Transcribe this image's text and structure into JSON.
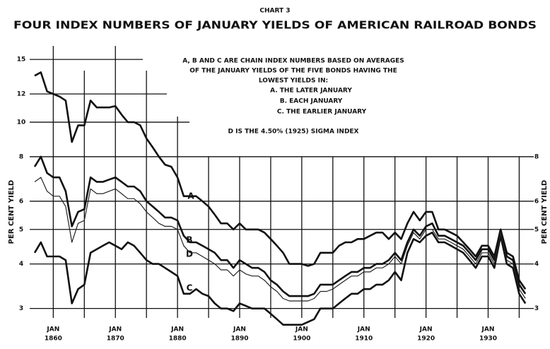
{
  "chart_data": {
    "type": "line",
    "subtitle": "CHART 3",
    "title": "FOUR INDEX NUMBERS OF JANUARY YIELDS OF AMERICAN RAILROAD BONDS",
    "annotations": [
      "A, B AND C ARE CHAIN INDEX NUMBERS BASED ON AVERAGES",
      "OF THE JANUARY YIELDS OF THE FIVE BONDS HAVING THE",
      "LOWEST YIELDS IN:",
      "A. THE LATER JANUARY",
      "B. EACH JANUARY",
      "C. THE EARLIER JANUARY",
      "D IS THE 4.50% (1925) SIGMA INDEX"
    ],
    "y_label": "PER CENT YIELD",
    "x_tick_prefix": "JAN",
    "log_scale_y": true,
    "x": [
      1857,
      1858,
      1859,
      1860,
      1861,
      1862,
      1863,
      1864,
      1865,
      1866,
      1867,
      1868,
      1869,
      1870,
      1871,
      1872,
      1873,
      1874,
      1875,
      1876,
      1877,
      1878,
      1879,
      1880,
      1881,
      1882,
      1883,
      1884,
      1885,
      1886,
      1887,
      1888,
      1889,
      1890,
      1891,
      1892,
      1893,
      1894,
      1895,
      1896,
      1897,
      1898,
      1899,
      1900,
      1901,
      1902,
      1903,
      1904,
      1905,
      1906,
      1907,
      1908,
      1909,
      1910,
      1911,
      1912,
      1913,
      1914,
      1915,
      1916,
      1917,
      1918,
      1919,
      1920,
      1921,
      1922,
      1923,
      1924,
      1925,
      1926,
      1927,
      1928,
      1929,
      1930,
      1931,
      1932,
      1933,
      1934,
      1935,
      1936
    ],
    "series": [
      {
        "name": "A",
        "color": "#111111",
        "values": [
          13.5,
          13.8,
          12.2,
          12,
          11.8,
          11.5,
          8.8,
          9.8,
          9.8,
          11.5,
          11,
          11,
          11,
          11.1,
          10.5,
          10,
          10,
          9.8,
          9,
          8.5,
          8,
          7.6,
          7.5,
          7,
          6.2,
          6.2,
          6.2,
          6,
          5.8,
          5.5,
          5.2,
          5.2,
          5,
          5.2,
          5,
          5,
          5,
          4.9,
          4.7,
          4.5,
          4.3,
          4,
          4,
          4,
          3.95,
          4,
          4.3,
          4.3,
          4.3,
          4.5,
          4.6,
          4.6,
          4.7,
          4.7,
          4.8,
          4.9,
          4.9,
          4.7,
          4.9,
          4.7,
          5.2,
          5.6,
          5.3,
          5.6,
          5.6,
          5.0,
          5.0,
          4.9,
          4.8,
          4.6,
          4.4,
          4.2,
          4.5,
          4.5,
          4.2,
          5.0,
          4.3,
          4.2,
          3.6,
          3.4
        ]
      },
      {
        "name": "B",
        "color": "#111111",
        "values": [
          7.5,
          8,
          7.2,
          7,
          7,
          6.4,
          5.1,
          5.6,
          5.7,
          7,
          6.8,
          6.8,
          6.9,
          7,
          6.8,
          6.6,
          6.6,
          6.4,
          6,
          5.8,
          5.6,
          5.4,
          5.4,
          5.3,
          4.8,
          4.6,
          4.6,
          4.5,
          4.4,
          4.3,
          4.1,
          4.1,
          3.9,
          4.1,
          4,
          3.9,
          3.9,
          3.8,
          3.6,
          3.5,
          3.35,
          3.25,
          3.25,
          3.25,
          3.25,
          3.3,
          3.5,
          3.5,
          3.5,
          3.6,
          3.7,
          3.8,
          3.8,
          3.9,
          3.9,
          4,
          4,
          4.1,
          4.3,
          4.1,
          4.6,
          5.0,
          4.8,
          5.1,
          5.2,
          4.8,
          4.8,
          4.7,
          4.6,
          4.5,
          4.3,
          4.1,
          4.4,
          4.4,
          4.1,
          5.0,
          4.2,
          4.1,
          3.5,
          3.3
        ]
      },
      {
        "name": "C",
        "color": "#111111",
        "values": [
          4.3,
          4.6,
          4.2,
          4.2,
          4.2,
          4.1,
          3.1,
          3.4,
          3.5,
          4.3,
          4.4,
          4.5,
          4.6,
          4.5,
          4.4,
          4.6,
          4.5,
          4.3,
          4.1,
          4,
          4,
          3.9,
          3.8,
          3.7,
          3.3,
          3.3,
          3.4,
          3.3,
          3.25,
          3.1,
          3.0,
          3.0,
          2.95,
          3.1,
          3.05,
          3.0,
          3.0,
          3.0,
          2.9,
          2.8,
          2.7,
          2.7,
          2.7,
          2.7,
          2.75,
          2.8,
          3.0,
          3.0,
          3.0,
          3.1,
          3.2,
          3.3,
          3.3,
          3.4,
          3.4,
          3.5,
          3.5,
          3.6,
          3.8,
          3.6,
          4.3,
          4.7,
          4.6,
          4.8,
          4.9,
          4.6,
          4.6,
          4.5,
          4.4,
          4.3,
          4.1,
          3.9,
          4.2,
          4.2,
          3.9,
          4.8,
          4.0,
          3.9,
          3.3,
          3.1
        ]
      },
      {
        "name": "D",
        "color": "#222222",
        "values": [
          6.8,
          7,
          6.4,
          6.2,
          6.2,
          5.8,
          4.6,
          5.2,
          5.3,
          6.5,
          6.3,
          6.3,
          6.4,
          6.5,
          6.3,
          6.1,
          6.1,
          5.9,
          5.6,
          5.4,
          5.2,
          5.1,
          5.1,
          5,
          4.5,
          4.3,
          4.3,
          4.2,
          4.1,
          4,
          3.85,
          3.85,
          3.7,
          3.85,
          3.75,
          3.7,
          3.7,
          3.6,
          3.45,
          3.35,
          3.2,
          3.15,
          3.15,
          3.15,
          3.15,
          3.2,
          3.35,
          3.35,
          3.4,
          3.5,
          3.6,
          3.7,
          3.7,
          3.8,
          3.8,
          3.9,
          3.9,
          4,
          4.2,
          4,
          4.5,
          4.9,
          4.7,
          5.0,
          5.0,
          4.7,
          4.7,
          4.6,
          4.5,
          4.4,
          4.2,
          4.0,
          4.3,
          4.3,
          4.0,
          4.9,
          4.1,
          4.0,
          3.4,
          3.2
        ]
      }
    ],
    "xlim": [
      1857,
      1937
    ],
    "ylim": [
      2.6,
      16
    ],
    "xticks": [
      1860,
      1870,
      1880,
      1890,
      1900,
      1910,
      1920,
      1930
    ],
    "xgrid": [
      1860,
      1865,
      1870,
      1875,
      1880,
      1885,
      1890,
      1895,
      1900,
      1905,
      1910,
      1915,
      1920,
      1925,
      1930,
      1935
    ],
    "yticks": [
      3,
      4,
      5,
      6,
      8,
      10,
      12,
      15
    ],
    "y2ticks": [
      3,
      4,
      5,
      6,
      8
    ]
  }
}
